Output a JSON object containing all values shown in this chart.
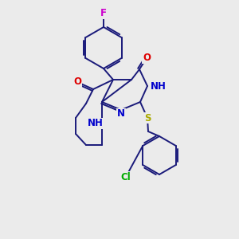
{
  "bg_color": "#ebebeb",
  "bond_color": "#1a1a7a",
  "bond_width": 1.4,
  "atom_colors": {
    "O": "#dd0000",
    "N": "#0000cc",
    "S": "#aaaa00",
    "F": "#cc00cc",
    "Cl": "#00aa00",
    "C": "#1a1a7a"
  },
  "font_size": 8.5
}
